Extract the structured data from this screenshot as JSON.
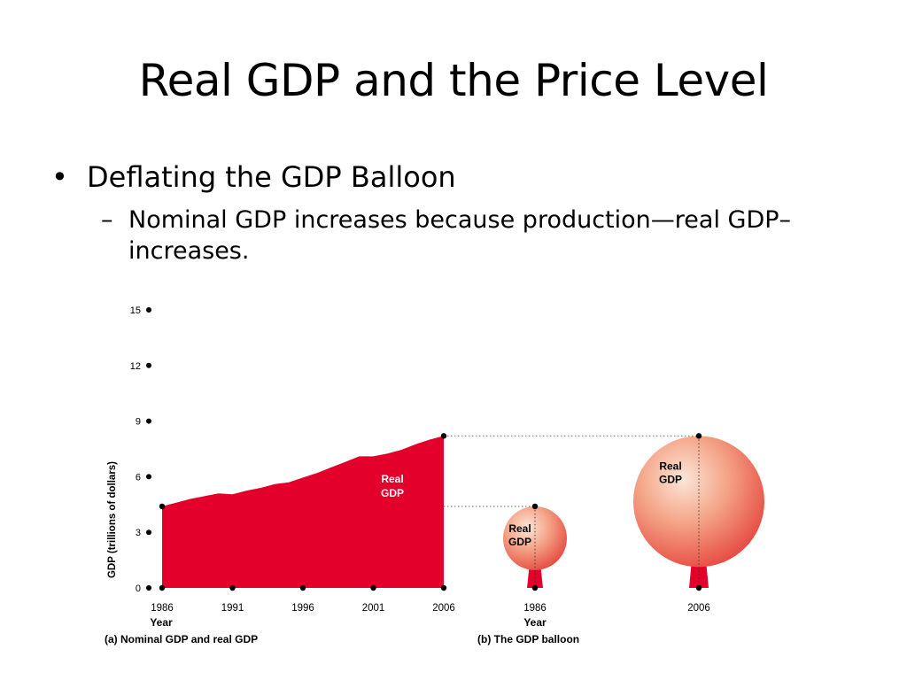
{
  "slide": {
    "title": "Real GDP and the Price Level",
    "bullet": "Deflating the GDP Balloon",
    "subbullet_dash": "–",
    "subbullet": "Nominal GDP increases because production—real GDP– increases."
  },
  "colors": {
    "real_gdp_fill": "#E3002B",
    "balloon_light": "#FCE6D8",
    "balloon_dark": "#E6463A",
    "axis_text": "#000000"
  },
  "chart_data": [
    {
      "type": "area",
      "panel_label": "(a) Nominal GDP and real GDP",
      "xlabel": "Year",
      "ylabel": "GDP (trillions of dollars)",
      "ylim": [
        0,
        15
      ],
      "yticks": [
        0,
        3,
        6,
        9,
        12,
        15
      ],
      "xticks": [
        1986,
        1991,
        1996,
        2001,
        2006
      ],
      "series": [
        {
          "name": "Real GDP",
          "x": [
            1986,
            1987,
            1988,
            1989,
            1990,
            1991,
            1992,
            1993,
            1994,
            1995,
            1996,
            1997,
            1998,
            1999,
            2000,
            2001,
            2002,
            2003,
            2004,
            2005,
            2006
          ],
          "values": [
            4.4,
            4.6,
            4.8,
            4.95,
            5.1,
            5.05,
            5.25,
            5.4,
            5.6,
            5.7,
            5.95,
            6.2,
            6.5,
            6.8,
            7.1,
            7.1,
            7.25,
            7.45,
            7.75,
            8.0,
            8.2
          ]
        }
      ],
      "grid": false
    },
    {
      "type": "other",
      "panel_label": "(b) The GDP balloon",
      "xlabel": "Year",
      "balloons": [
        {
          "year": "1986",
          "label": "Real GDP",
          "value": 4.4
        },
        {
          "year": "2006",
          "label": "Real GDP",
          "value": 8.2
        }
      ]
    }
  ]
}
